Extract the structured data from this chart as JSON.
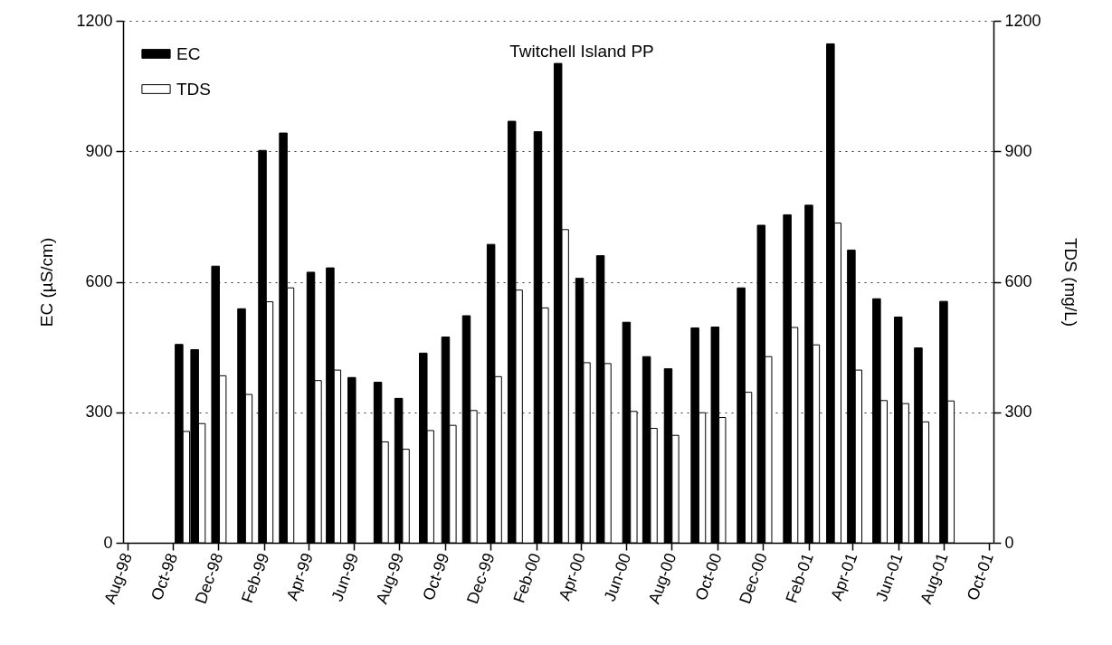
{
  "chart_data": {
    "type": "bar",
    "annotations": [
      "Twitchell Island PP"
    ],
    "ylabel": "EC (µS/cm)",
    "y2label": "TDS (mg/L)",
    "x": [
      "1998-10-14",
      "1998-11-04",
      "1998-12-02",
      "1999-01-06",
      "1999-02-03",
      "1999-03-03",
      "1999-04-09",
      "1999-05-05",
      "1999-06-03",
      "1999-07-08",
      "1999-08-05",
      "1999-09-07",
      "1999-10-07",
      "1999-11-04",
      "1999-12-07",
      "2000-01-04",
      "2000-02-08",
      "2000-03-06",
      "2000-04-04",
      "2000-05-02",
      "2000-06-06",
      "2000-07-03",
      "2000-08-01",
      "2000-09-06",
      "2000-10-03",
      "2000-11-07",
      "2000-12-04",
      "2001-01-08",
      "2001-02-06",
      "2001-03-07",
      "2001-04-04",
      "2001-05-08",
      "2001-06-06",
      "2001-07-03",
      "2001-08-06"
    ],
    "series": [
      {
        "name": "EC",
        "color": "#000000",
        "values": [
          456,
          444,
          636,
          538,
          902,
          942,
          622,
          632,
          380,
          369,
          332,
          436,
          473,
          522,
          686,
          969,
          945,
          1102,
          608,
          660,
          507,
          428,
          400,
          494,
          496,
          586,
          730,
          754,
          776,
          1147,
          673,
          561,
          519,
          448,
          555
        ]
      },
      {
        "name": "TDS",
        "color": "#ffffff",
        "axis": "y2",
        "values": [
          256,
          274,
          384,
          341,
          554,
          586,
          373,
          397,
          null,
          232,
          215,
          258,
          270,
          304,
          382,
          581,
          540,
          720,
          414,
          412,
          302,
          263,
          247,
          299,
          288,
          346,
          428,
          495,
          455,
          735,
          397,
          327,
          320,
          278,
          326
        ]
      }
    ],
    "xlim": [
      "1998-08-01",
      "2001-10-01"
    ],
    "xticks": [
      {
        "value": "1998-08-01",
        "label": "Aug-98"
      },
      {
        "value": "1998-10-01",
        "label": "Oct-98"
      },
      {
        "value": "1998-12-01",
        "label": "Dec-98"
      },
      {
        "value": "1999-02-01",
        "label": "Feb-99"
      },
      {
        "value": "1999-04-01",
        "label": "Apr-99"
      },
      {
        "value": "1999-06-01",
        "label": "Jun-99"
      },
      {
        "value": "1999-08-01",
        "label": "Aug-99"
      },
      {
        "value": "1999-10-01",
        "label": "Oct-99"
      },
      {
        "value": "1999-12-01",
        "label": "Dec-99"
      },
      {
        "value": "2000-02-01",
        "label": "Feb-00"
      },
      {
        "value": "2000-04-01",
        "label": "Apr-00"
      },
      {
        "value": "2000-06-01",
        "label": "Jun-00"
      },
      {
        "value": "2000-08-01",
        "label": "Aug-00"
      },
      {
        "value": "2000-10-01",
        "label": "Oct-00"
      },
      {
        "value": "2000-12-01",
        "label": "Dec-00"
      },
      {
        "value": "2001-02-01",
        "label": "Feb-01"
      },
      {
        "value": "2001-04-01",
        "label": "Apr-01"
      },
      {
        "value": "2001-06-01",
        "label": "Jun-01"
      },
      {
        "value": "2001-08-01",
        "label": "Aug-01"
      },
      {
        "value": "2001-10-01",
        "label": "Oct-01"
      }
    ],
    "ylim": [
      0,
      1200
    ],
    "yticks": [
      0,
      300,
      600,
      900,
      1200
    ],
    "y2lim": [
      0,
      1200
    ],
    "y2ticks": [
      0,
      300,
      600,
      900,
      1200
    ],
    "grid": "y",
    "legend": "top left"
  }
}
